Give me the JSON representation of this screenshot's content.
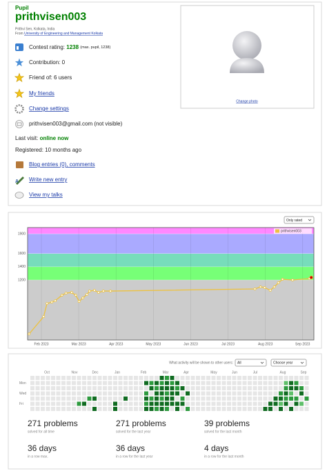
{
  "profile": {
    "rank": "Pupil",
    "handle": "prithvisen003",
    "name_line": "Prithvi Sen, Kolkata, India",
    "from": "From",
    "organization": "University of Engineering and Management Kolkata",
    "rating_label": "Contest rating:",
    "rating": "1238",
    "max_rating": "(max. pupil, 1238)",
    "contribution": "Contribution: 0",
    "friend_of": "Friend of: 6 users",
    "my_friends": "My friends",
    "change_settings": "Change settings",
    "email": "prithvisen003@gmail.com (not visible)",
    "last_visit_label": "Last visit:",
    "last_visit": "online now",
    "registered": "Registered: 10 months ago",
    "blog": "Blog entries (0), comments",
    "write_entry": "Write new entry",
    "talks": "View my talks",
    "change_photo": "Change photo"
  },
  "chart_data": {
    "type": "line",
    "filter": "Only rated",
    "legend": "upper right",
    "grid": true,
    "x": [
      1.67,
      2.06,
      2.15,
      2.28,
      2.37,
      2.55,
      2.66,
      2.81,
      2.92,
      3.01,
      3.11,
      3.22,
      3.29,
      3.42,
      3.53,
      3.66,
      3.85,
      7.72,
      7.87,
      7.98,
      8.13,
      8.24,
      8.35,
      8.46,
      8.73,
      9.18,
      9.23
    ],
    "series": [
      {
        "name": "prithvisen003",
        "color": "#edc240",
        "values": [
          381,
          644,
          843,
          864,
          885,
          969,
          1000,
          1011,
          969,
          875,
          927,
          980,
          1032,
          1043,
          1011,
          1032,
          1032,
          1064,
          1095,
          1085,
          1043,
          1095,
          1158,
          1210,
          1200,
          1221,
          1238
        ]
      }
    ],
    "last_point_color": "#cc0000",
    "xlim": [
      1.63,
      9.3
    ],
    "xticks": [
      {
        "value": 2,
        "label": "Feb 2023"
      },
      {
        "value": 3,
        "label": "Mar 2023"
      },
      {
        "value": 4,
        "label": "Apr 2023"
      },
      {
        "value": 5,
        "label": "May 2023"
      },
      {
        "value": 6,
        "label": "Jun 2023"
      },
      {
        "value": 7,
        "label": "Jul 2023"
      },
      {
        "value": 8,
        "label": "Aug 2023"
      },
      {
        "value": 9,
        "label": "Sep 2023"
      }
    ],
    "ylim": [
      290,
      1995
    ],
    "yticks": [
      1200,
      1400,
      1600,
      1900
    ],
    "band_colors": [
      "#cccccc",
      "#77ff77",
      "#77ddbb",
      "#aaaaff",
      "#ff88ff"
    ]
  },
  "activity": {
    "prompt": "What activity will be shown to other users:",
    "filter": "All",
    "year": "Choose year",
    "months": [
      "Oct",
      "Nov",
      "Dec",
      "Jan",
      "Feb",
      "Mar",
      "Apr",
      "May",
      "Jun",
      "Jul",
      "Aug",
      "Sep"
    ],
    "days": [
      "Mon",
      "Wed",
      "Fri"
    ],
    "colors": [
      "#e6e6e6",
      "#b2dfb0",
      "#5fbf6a",
      "#2d9a3e",
      "#106b21"
    ],
    "weeks": [
      [
        0,
        0,
        0,
        0,
        0,
        0,
        0
      ],
      [
        0,
        0,
        0,
        0,
        0,
        0,
        0
      ],
      [
        0,
        0,
        0,
        0,
        0,
        0,
        0
      ],
      [
        0,
        0,
        0,
        0,
        0,
        0,
        0
      ],
      [
        0,
        0,
        0,
        0,
        0,
        0,
        0
      ],
      [
        0,
        0,
        0,
        0,
        0,
        0,
        0
      ],
      [
        0,
        0,
        0,
        0,
        0,
        0,
        0
      ],
      [
        0,
        0,
        0,
        0,
        0,
        0,
        0
      ],
      [
        0,
        0,
        0,
        0,
        0,
        0,
        0
      ],
      [
        0,
        0,
        0,
        0,
        0,
        3,
        0
      ],
      [
        0,
        0,
        0,
        0,
        0,
        4,
        0
      ],
      [
        0,
        0,
        0,
        0,
        3,
        0,
        0
      ],
      [
        0,
        0,
        0,
        0,
        4,
        0,
        4
      ],
      [
        0,
        0,
        0,
        0,
        0,
        0,
        0
      ],
      [
        0,
        0,
        0,
        0,
        0,
        0,
        0
      ],
      [
        0,
        0,
        0,
        0,
        0,
        0,
        0
      ],
      [
        0,
        0,
        0,
        0,
        0,
        4,
        4
      ],
      [
        0,
        0,
        0,
        0,
        0,
        0,
        0
      ],
      [
        0,
        0,
        0,
        0,
        4,
        0,
        0
      ],
      [
        0,
        0,
        0,
        0,
        0,
        0,
        0
      ],
      [
        0,
        0,
        0,
        0,
        0,
        0,
        0
      ],
      [
        0,
        0,
        0,
        0,
        0,
        0,
        0
      ],
      [
        0,
        4,
        0,
        3,
        4,
        3,
        4
      ],
      [
        0,
        3,
        4,
        0,
        3,
        4,
        4
      ],
      [
        0,
        4,
        3,
        4,
        4,
        4,
        3
      ],
      [
        4,
        3,
        4,
        4,
        3,
        4,
        4
      ],
      [
        3,
        4,
        4,
        3,
        4,
        4,
        3
      ],
      [
        4,
        3,
        4,
        4,
        4,
        4,
        0
      ],
      [
        0,
        4,
        3,
        4,
        0,
        4,
        4
      ],
      [
        0,
        0,
        4,
        0,
        3,
        4,
        0
      ],
      [
        0,
        0,
        0,
        4,
        0,
        0,
        3
      ],
      [
        0,
        0,
        0,
        0,
        0,
        0,
        0
      ],
      [
        0,
        0,
        0,
        0,
        0,
        0,
        0
      ],
      [
        0,
        0,
        0,
        0,
        0,
        0,
        0
      ],
      [
        0,
        0,
        0,
        0,
        0,
        0,
        0
      ],
      [
        0,
        0,
        0,
        0,
        0,
        0,
        0
      ],
      [
        0,
        0,
        0,
        0,
        0,
        0,
        0
      ],
      [
        0,
        0,
        0,
        0,
        0,
        0,
        0
      ],
      [
        0,
        0,
        0,
        0,
        0,
        0,
        0
      ],
      [
        0,
        0,
        0,
        0,
        0,
        0,
        0
      ],
      [
        0,
        0,
        0,
        0,
        0,
        0,
        0
      ],
      [
        0,
        0,
        0,
        0,
        0,
        0,
        0
      ],
      [
        0,
        0,
        0,
        0,
        0,
        0,
        0
      ],
      [
        0,
        0,
        0,
        0,
        0,
        0,
        0
      ],
      [
        0,
        0,
        0,
        0,
        0,
        0,
        0
      ],
      [
        0,
        0,
        0,
        0,
        0,
        0,
        4
      ],
      [
        0,
        0,
        0,
        0,
        0,
        4,
        4
      ],
      [
        0,
        0,
        0,
        0,
        4,
        4,
        0
      ],
      [
        0,
        0,
        0,
        3,
        4,
        2,
        4
      ],
      [
        0,
        2,
        3,
        4,
        3,
        4,
        0
      ],
      [
        0,
        4,
        4,
        2,
        3,
        0,
        4
      ],
      [
        0,
        3,
        4,
        0,
        3,
        4,
        0
      ],
      [
        0,
        0,
        3,
        4,
        0,
        2,
        0
      ],
      [
        0,
        0,
        0,
        0,
        3,
        0,
        0
      ]
    ]
  },
  "stats": [
    {
      "value": "271 problems",
      "label": "solved for all time"
    },
    {
      "value": "271 problems",
      "label": "solved for the last year"
    },
    {
      "value": "39 problems",
      "label": "solved for the last month"
    },
    {
      "value": "36 days",
      "label": "in a row max."
    },
    {
      "value": "36 days",
      "label": "in a row for the last year"
    },
    {
      "value": "4 days",
      "label": "in a row for the last month"
    }
  ]
}
